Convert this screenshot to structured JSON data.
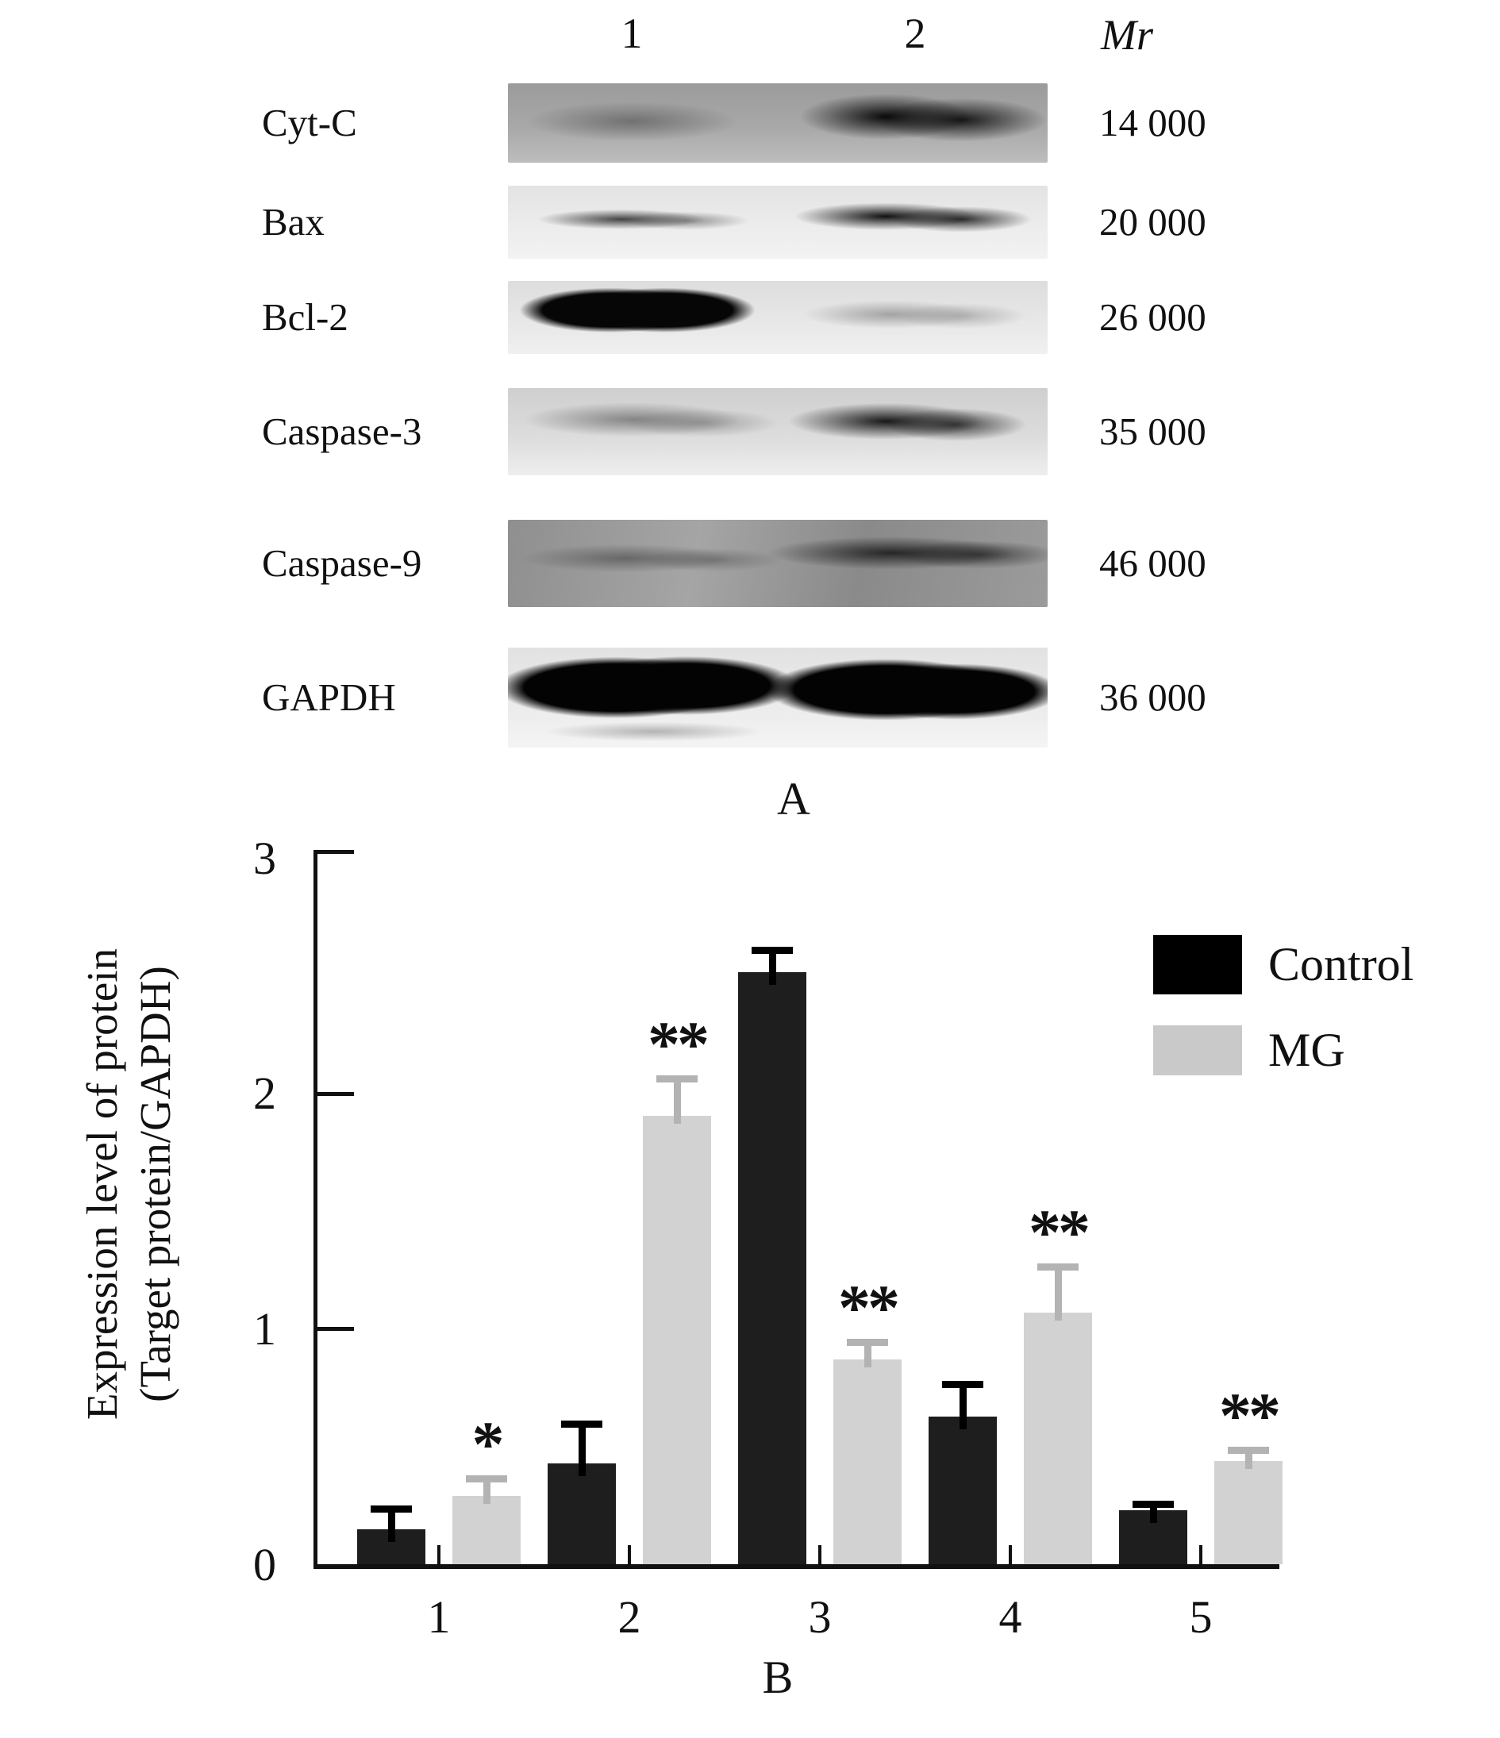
{
  "figure": {
    "panel_a": {
      "label": "A",
      "lane_header": {
        "lane1": "1",
        "lane2": "2",
        "mr_label": "Mr"
      },
      "rows": [
        {
          "protein": "Cyt-C",
          "mr": "14 000",
          "lane1_band": "faint",
          "lane2_band": "strong"
        },
        {
          "protein": "Bax",
          "mr": "20 000",
          "lane1_band": "moderate",
          "lane2_band": "strong"
        },
        {
          "protein": "Bcl-2",
          "mr": "26 000",
          "lane1_band": "very-strong",
          "lane2_band": "faint"
        },
        {
          "protein": "Caspase-3",
          "mr": "35 000",
          "lane1_band": "moderate",
          "lane2_band": "strong"
        },
        {
          "protein": "Caspase-9",
          "mr": "46 000",
          "lane1_band": "faint",
          "lane2_band": "moderate"
        },
        {
          "protein": "GAPDH",
          "mr": "36 000",
          "lane1_band": "strong",
          "lane2_band": "strong"
        }
      ]
    },
    "panel_b": {
      "label": "B",
      "y_axis_title_line1": "Expression level of protein",
      "y_axis_title_line2": "(Target protein/GAPDH)",
      "y_ticks": [
        "0",
        "1",
        "2",
        "3"
      ],
      "legend": [
        {
          "label": "Control",
          "color": "#000000"
        },
        {
          "label": "MG",
          "color": "#c9c9c9"
        }
      ]
    }
  },
  "chart_data": {
    "type": "bar",
    "categories": [
      "1",
      "2",
      "3",
      "4",
      "5"
    ],
    "series": [
      {
        "name": "Control",
        "color": "#1e1e1e",
        "values": [
          0.15,
          0.43,
          2.52,
          0.63,
          0.23
        ],
        "errors": [
          0.1,
          0.18,
          0.11,
          0.15,
          0.04
        ]
      },
      {
        "name": "MG",
        "color": "#d2d2d2",
        "values": [
          0.29,
          1.91,
          0.87,
          1.07,
          0.44
        ],
        "errors": [
          0.09,
          0.17,
          0.09,
          0.21,
          0.06
        ]
      }
    ],
    "significance": [
      "*",
      "**",
      "**",
      "**",
      "**"
    ],
    "significance_on": "MG",
    "title": "",
    "xlabel": "B",
    "ylabel": "Expression level of protein (Target protein/GAPDH)",
    "ylim": [
      0,
      3
    ],
    "yticks": [
      0,
      1,
      2,
      3
    ],
    "legend_position": "top-right",
    "grid": false
  }
}
